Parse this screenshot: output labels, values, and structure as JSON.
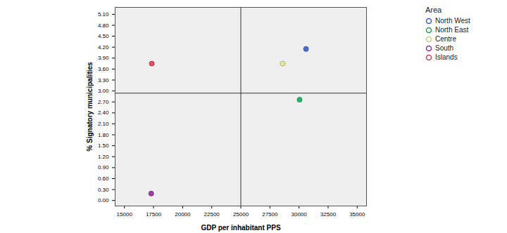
{
  "chart_data": {
    "type": "scatter",
    "xlabel": "GDP per inhabitant PPS",
    "ylabel": "% Signatory municipalities",
    "xlim": [
      14200,
      35800
    ],
    "xticks": [
      15000,
      17500,
      20000,
      22500,
      25000,
      27500,
      30000,
      32500,
      35000
    ],
    "ylim": [
      -0.15,
      5.29
    ],
    "yticks": [
      {
        "value": 0,
        "label": "0.00"
      },
      {
        "value": 0.3,
        "label": "0.30"
      },
      {
        "value": 0.6,
        "label": "0.60"
      },
      {
        "value": 0.9,
        "label": "0.90"
      },
      {
        "value": 1.2,
        "label": "1.20"
      },
      {
        "value": 1.5,
        "label": "1.50"
      },
      {
        "value": 1.8,
        "label": "1.80"
      },
      {
        "value": 2.1,
        "label": "2.10"
      },
      {
        "value": 2.4,
        "label": "2.40"
      },
      {
        "value": 2.7,
        "label": "2.70"
      },
      {
        "value": 3,
        "label": "3.00"
      },
      {
        "value": 3.3,
        "label": "3.30"
      },
      {
        "value": 3.6,
        "label": "3.60"
      },
      {
        "value": 3.9,
        "label": "3.90"
      },
      {
        "value": 4.2,
        "label": "4.20"
      },
      {
        "value": 4.5,
        "label": "4.50"
      },
      {
        "value": 4.8,
        "label": "4.80"
      },
      {
        "value": 5.1,
        "label": "5.10"
      }
    ],
    "reference_lines": {
      "x": 25000,
      "y": 2.94
    },
    "legend": "right",
    "legend_title": "Area",
    "marker": "circle",
    "grid": false,
    "series": [
      {
        "name": "North West",
        "color": "#4a6fd0",
        "x": [
          30600
        ],
        "values": [
          4.15
        ]
      },
      {
        "name": "North East",
        "color": "#2bb866",
        "x": [
          30050
        ],
        "values": [
          2.76
        ]
      },
      {
        "name": "Centre",
        "color": "#ecea9a",
        "x": [
          28600
        ],
        "values": [
          3.75
        ]
      },
      {
        "name": "South",
        "color": "#9b3fa8",
        "x": [
          17300
        ],
        "values": [
          0.19
        ]
      },
      {
        "name": "Islands",
        "color": "#e0506a",
        "x": [
          17350
        ],
        "values": [
          3.75
        ]
      }
    ]
  }
}
